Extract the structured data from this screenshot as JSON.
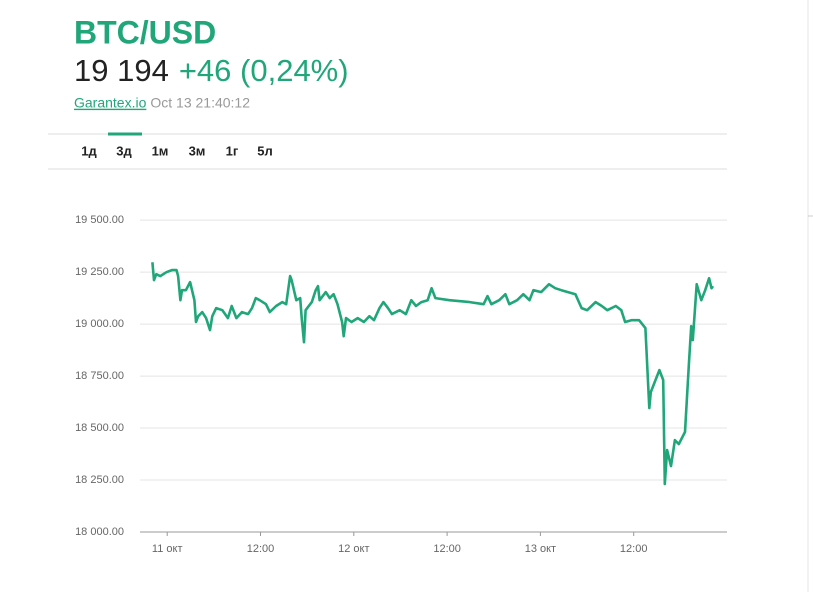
{
  "header": {
    "title": "BTC/USD",
    "price": "19 194",
    "change": "+46 (0,24%)",
    "source": "Garantex.io",
    "timestamp": "Oct 13 21:40:12"
  },
  "tabs": [
    "1д",
    "3д",
    "1м",
    "3м",
    "1г",
    "5л"
  ],
  "active_tab": 1,
  "chart_data": {
    "type": "line",
    "color": "#21a67a",
    "grid": true,
    "x": [
      -1.9,
      -1.7,
      -1.4,
      -0.9,
      -0.1,
      0.6,
      1.2,
      1.4,
      1.7,
      1.9,
      2.4,
      2.95,
      3.5,
      3.7,
      3.98,
      4.5,
      5.0,
      5.5,
      5.8,
      6.3,
      7.1,
      7.8,
      8.3,
      8.9,
      9.6,
      10.4,
      10.9,
      11.4,
      11.9,
      12.7,
      13.2,
      14.0,
      14.8,
      15.3,
      15.8,
      16.0,
      16.6,
      17.1,
      17.3,
      17.6,
      17.8,
      18.6,
      19.1,
      19.4,
      19.6,
      20.4,
      20.9,
      21.4,
      21.9,
      22.5,
      22.7,
      23.0,
      23.7,
      24.5,
      25.3,
      26.0,
      26.6,
      27.3,
      27.8,
      28.4,
      28.9,
      29.9,
      30.7,
      31.4,
      32.0,
      32.7,
      33.5,
      34.0,
      34.5,
      36.3,
      38.9,
      40.7,
      41.2,
      41.7,
      42.7,
      43.5,
      44.0,
      45.0,
      45.8,
      46.6,
      47.1,
      48.1,
      49.1,
      49.9,
      50.7,
      52.5,
      53.3,
      54.0,
      55.1,
      55.9,
      56.6,
      57.7,
      58.4,
      58.9,
      59.7,
      60.7,
      61.5,
      62.0,
      62.2,
      62.7,
      63.3,
      63.8,
      64.0,
      64.3,
      64.8,
      65.3,
      65.8,
      66.6,
      67.1,
      67.4,
      67.6,
      68.1,
      68.7,
      69.2,
      69.7,
      70.0,
      70.2
    ],
    "values": [
      19298,
      19212,
      19240,
      19231,
      19250,
      19260,
      19260,
      19231,
      19115,
      19163,
      19163,
      19202,
      19115,
      19010,
      19038,
      19058,
      19029,
      18971,
      19038,
      19077,
      19067,
      19029,
      19087,
      19029,
      19058,
      19048,
      19077,
      19125,
      19115,
      19096,
      19058,
      19087,
      19106,
      19096,
      19231,
      19212,
      19115,
      19125,
      19029,
      18913,
      19067,
      19106,
      19163,
      19183,
      19115,
      19154,
      19125,
      19144,
      19096,
      19010,
      18942,
      19029,
      19010,
      19029,
      19010,
      19038,
      19019,
      19077,
      19106,
      19077,
      19048,
      19067,
      19048,
      19115,
      19087,
      19106,
      19115,
      19173,
      19125,
      19115,
      19106,
      19096,
      19135,
      19096,
      19115,
      19144,
      19096,
      19115,
      19144,
      19115,
      19163,
      19154,
      19192,
      19173,
      19163,
      19144,
      19077,
      19067,
      19106,
      19087,
      19067,
      19087,
      19067,
      19010,
      19019,
      19019,
      18981,
      18596,
      18673,
      18721,
      18779,
      18731,
      18231,
      18394,
      18317,
      18442,
      18423,
      18481,
      18808,
      18990,
      18923,
      19192,
      19115,
      19163,
      19221,
      19173,
      19183
    ],
    "xlim": [
      -3.5,
      72
    ],
    "xticks": [
      {
        "value": 0,
        "label": "11 окт"
      },
      {
        "value": 12,
        "label": "12:00"
      },
      {
        "value": 24,
        "label": "12 окт"
      },
      {
        "value": 36,
        "label": "12:00"
      },
      {
        "value": 48,
        "label": "13 окт"
      },
      {
        "value": 60,
        "label": "12:00"
      }
    ],
    "ylim": [
      18000,
      19650
    ],
    "yticks": [
      {
        "value": 18000,
        "label": "18 000.00"
      },
      {
        "value": 18250,
        "label": "18 250.00"
      },
      {
        "value": 18500,
        "label": "18 500.00"
      },
      {
        "value": 18750,
        "label": "18 750.00"
      },
      {
        "value": 19000,
        "label": "19 000.00"
      },
      {
        "value": 19250,
        "label": "19 250.00"
      },
      {
        "value": 19500,
        "label": "19 500.00"
      }
    ]
  }
}
